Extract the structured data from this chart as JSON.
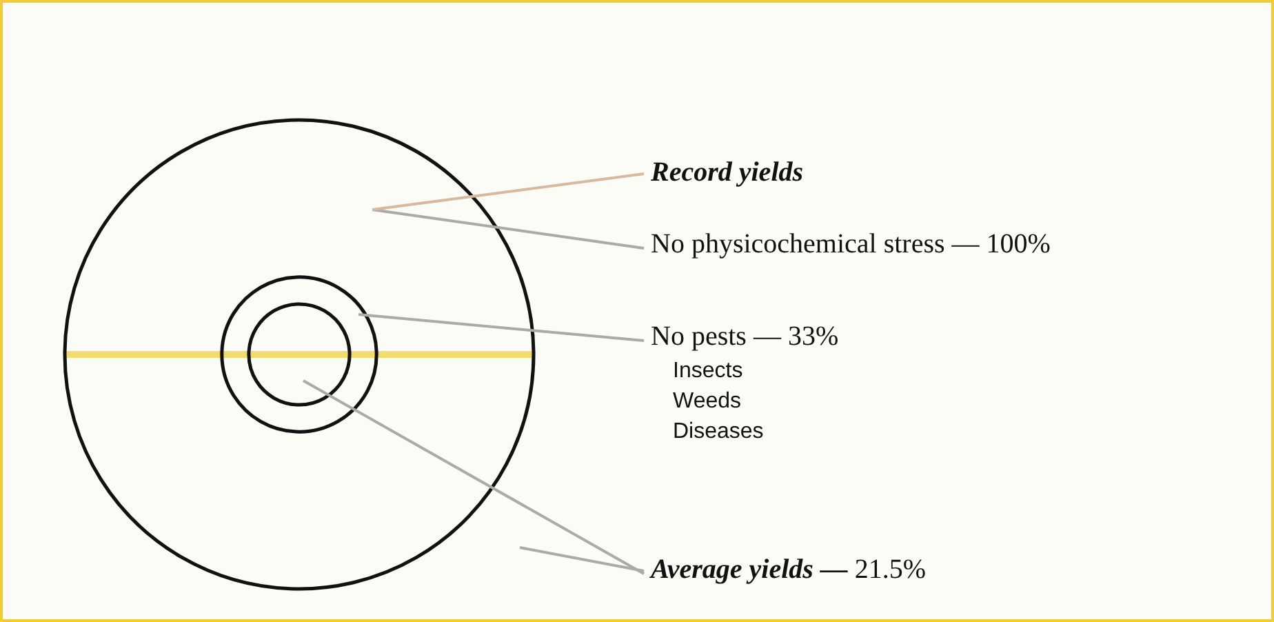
{
  "chart_data": {
    "type": "other",
    "categories": [
      "No physicochemical stress —",
      "No pests —",
      "Average yields —"
    ],
    "values": [
      100,
      33,
      21.5
    ],
    "value_labels": [
      "100%",
      "33%",
      "21.5%"
    ],
    "annotations": [
      "Record yields",
      "Insects",
      "Weeds",
      "Diseases"
    ]
  }
}
